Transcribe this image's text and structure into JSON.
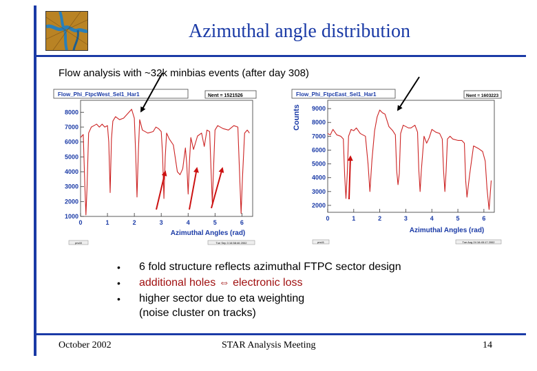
{
  "slide": {
    "title": "Azimuthal angle distribution",
    "subtitle": "Flow analysis with ~32k minbias events (after day 308)",
    "bullets": [
      {
        "text": "6 fold structure reflects azimuthal FTPC sector design",
        "color": "#000000"
      },
      {
        "text": "additional holes ⇔ electronic loss",
        "color": "#a01010"
      },
      {
        "text": "higher sector due to eta weighting",
        "color": "#000000"
      }
    ],
    "bullet_continuation": "(noise cluster on tracks)",
    "footer": {
      "date": "October 2002",
      "meeting": "STAR Analysis Meeting",
      "page": "14"
    }
  },
  "chart_data": [
    {
      "type": "line",
      "title": "Flow_Phi_FtpcWest_Sel1_Har1",
      "stats": "Nent = 1521526",
      "xlabel": "Azimuthal Angles (rad)",
      "ylabel": "",
      "xlim": [
        0,
        6.4
      ],
      "ylim": [
        1000,
        8800
      ],
      "xticks": [
        "0",
        "1",
        "2",
        "3",
        "4",
        "5",
        "6"
      ],
      "yticks": [
        "1000",
        "2000",
        "3000",
        "4000",
        "5000",
        "6000",
        "7000",
        "8000"
      ],
      "footer_left": "prs40",
      "footer_right": "Tue Sep 3 16:58:46 2002",
      "color": "#cc2222",
      "series": [
        {
          "x": [
            0.0,
            0.1,
            0.16,
            0.2,
            0.24,
            0.3,
            0.4,
            0.5,
            0.6,
            0.7,
            0.8,
            0.9,
            1.0,
            1.05,
            1.1,
            1.15,
            1.2,
            1.3,
            1.45,
            1.6,
            1.75,
            1.9,
            2.0,
            2.05,
            2.1,
            2.15,
            2.2,
            2.3,
            2.5,
            2.7,
            2.8,
            2.9,
            3.0,
            3.05,
            3.1,
            3.15,
            3.2,
            3.3,
            3.45,
            3.6,
            3.7,
            3.8,
            3.9,
            3.95,
            4.0,
            4.05,
            4.1,
            4.2,
            4.35,
            4.5,
            4.6,
            4.7,
            4.8,
            4.85,
            4.9,
            4.95,
            5.0,
            5.1,
            5.3,
            5.5,
            5.7,
            5.85,
            5.92,
            5.97,
            6.02,
            6.1,
            6.2,
            6.28
          ],
          "values": [
            6300,
            6500,
            3000,
            1100,
            2900,
            6600,
            7000,
            7100,
            7200,
            7000,
            7200,
            7000,
            7100,
            6000,
            2600,
            6200,
            7400,
            7700,
            7500,
            7600,
            7900,
            8200,
            7600,
            5200,
            2300,
            5400,
            7500,
            6800,
            6600,
            6700,
            7000,
            6900,
            6700,
            5200,
            2200,
            5000,
            6600,
            6200,
            5800,
            4000,
            3800,
            4200,
            5600,
            4500,
            2500,
            4700,
            6300,
            5500,
            6400,
            6600,
            5700,
            6800,
            6700,
            4200,
            1900,
            4500,
            6800,
            7100,
            6900,
            6800,
            7100,
            7000,
            3500,
            1200,
            3600,
            6600,
            6800,
            6600
          ]
        }
      ]
    },
    {
      "type": "line",
      "title": "Flow_Phi_FtpcEast_Sel1_Har1",
      "stats": "Nent = 1603223",
      "xlabel": "Azimuthal Angles (rad)",
      "ylabel": "Counts",
      "xlim": [
        0,
        6.4
      ],
      "ylim": [
        1500,
        9600
      ],
      "xticks": [
        "0",
        "1",
        "2",
        "3",
        "4",
        "5",
        "6"
      ],
      "yticks": [
        "2000",
        "3000",
        "4000",
        "5000",
        "6000",
        "7000",
        "8000",
        "9000"
      ],
      "footer_left": "prs41",
      "footer_right": "Tue Aug 24 16:45:17 2002",
      "color": "#cc2222",
      "series": [
        {
          "x": [
            0.0,
            0.1,
            0.2,
            0.35,
            0.5,
            0.6,
            0.65,
            0.7,
            0.75,
            0.8,
            0.9,
            1.0,
            1.1,
            1.25,
            1.45,
            1.55,
            1.62,
            1.7,
            1.8,
            1.9,
            2.0,
            2.1,
            2.2,
            2.35,
            2.5,
            2.6,
            2.65,
            2.7,
            2.75,
            2.8,
            2.9,
            3.0,
            3.1,
            3.2,
            3.35,
            3.45,
            3.5,
            3.55,
            3.6,
            3.7,
            3.8,
            3.9,
            4.0,
            4.15,
            4.3,
            4.4,
            4.45,
            4.5,
            4.55,
            4.6,
            4.7,
            4.8,
            5.0,
            5.15,
            5.25,
            5.3,
            5.35,
            5.45,
            5.6,
            5.8,
            5.95,
            6.05,
            6.12,
            6.2,
            6.28
          ],
          "values": [
            7200,
            7100,
            7500,
            7100,
            7000,
            6800,
            4200,
            2500,
            4300,
            7000,
            7500,
            7400,
            7600,
            7200,
            7000,
            5000,
            3000,
            5300,
            7400,
            8400,
            8900,
            8700,
            8600,
            7700,
            7400,
            7100,
            4500,
            3500,
            4300,
            7200,
            7800,
            7700,
            7600,
            7600,
            7800,
            7300,
            4600,
            3000,
            4600,
            7000,
            6500,
            6900,
            7500,
            7300,
            7200,
            6800,
            4500,
            3000,
            4500,
            6800,
            7000,
            6800,
            6700,
            6700,
            6500,
            3800,
            2600,
            4200,
            6300,
            6100,
            5900,
            5200,
            3200,
            1700,
            3800
          ]
        }
      ]
    }
  ]
}
